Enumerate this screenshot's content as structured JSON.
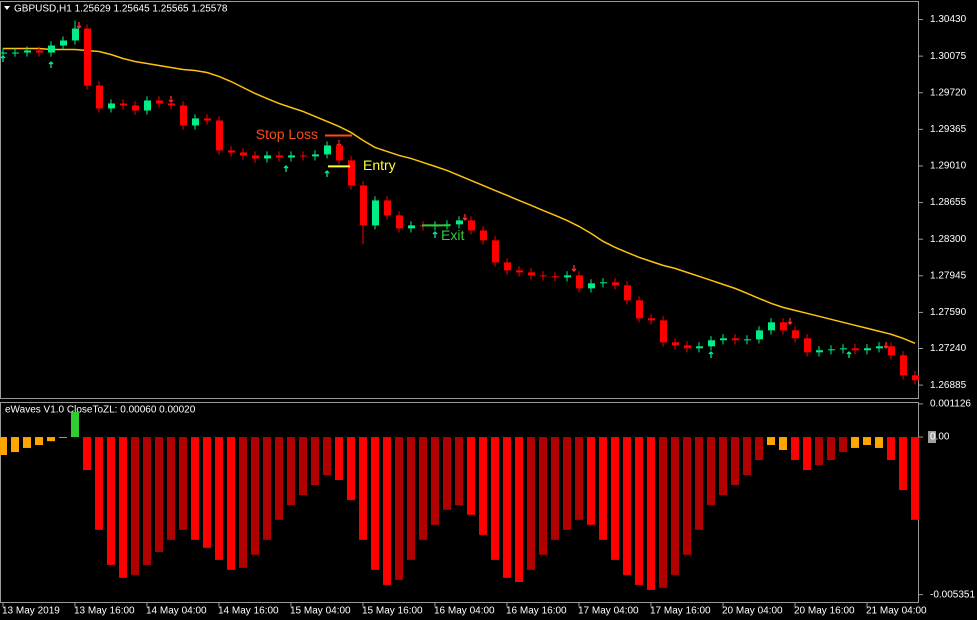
{
  "chart_data": [
    {
      "type": "candlestick",
      "title": "GBPUSD,H1  1.25629 1.25645 1.25565 1.25578",
      "categories": [
        "13 May 2019",
        null,
        null,
        null,
        null,
        null,
        "13 May 16:00",
        null,
        null,
        null,
        null,
        null,
        "14 May 04:00",
        null,
        null,
        null,
        null,
        null,
        "14 May 16:00",
        null,
        null,
        null,
        null,
        null,
        "15 May 04:00",
        null,
        null,
        null,
        null,
        null,
        "15 May 16:00",
        null,
        null,
        null,
        null,
        null,
        "16 May 04:00",
        null,
        null,
        null,
        null,
        null,
        "16 May 16:00",
        null,
        null,
        null,
        null,
        null,
        "17 May 04:00",
        null,
        null,
        null,
        null,
        null,
        "17 May 16:00",
        null,
        null,
        null,
        null,
        null,
        "20 May 04:00",
        null,
        null,
        null,
        null,
        null,
        "20 May 16:00",
        null,
        null,
        null,
        null,
        null,
        "21 May 04:00",
        null,
        null,
        null,
        null
      ],
      "open": [
        1.301,
        1.3011,
        1.3011,
        1.3013,
        1.3011,
        1.30178,
        1.30227,
        1.30343,
        1.2979,
        1.29568,
        1.29616,
        1.29597,
        1.29548,
        1.29645,
        1.29616,
        1.29597,
        1.29403,
        1.29471,
        1.29451,
        1.29161,
        1.29141,
        1.29112,
        1.29083,
        1.29112,
        1.29093,
        1.29112,
        1.29103,
        1.29122,
        1.29209,
        1.29064,
        1.28821,
        1.28434,
        1.28676,
        1.28531,
        1.28405,
        1.28434,
        1.28424,
        1.28434,
        1.28444,
        1.28482,
        1.28385,
        1.28289,
        1.28075,
        1.27998,
        1.27978,
        1.27949,
        1.2794,
        1.2793,
        1.27949,
        1.27823,
        1.27872,
        1.27882,
        1.27853,
        1.27707,
        1.27533,
        1.27513,
        1.273,
        1.27271,
        1.27242,
        1.27261,
        1.2732,
        1.27339,
        1.2732,
        1.27329,
        1.27416,
        1.27494,
        1.27416,
        1.27339,
        1.27203,
        1.27223,
        1.27232,
        1.27242,
        1.27223,
        1.27242,
        1.27261,
        1.27174,
        1.2698
      ],
      "high": [
        1.3015,
        1.3015,
        1.3017,
        1.3017,
        1.30218,
        1.30267,
        1.3042,
        1.30383,
        1.2983,
        1.29656,
        1.29656,
        1.29637,
        1.29685,
        1.29685,
        1.29656,
        1.29637,
        1.29511,
        1.29511,
        1.29491,
        1.29201,
        1.29181,
        1.29152,
        1.29152,
        1.29152,
        1.29152,
        1.29152,
        1.29162,
        1.29249,
        1.29249,
        1.29104,
        1.28861,
        1.28716,
        1.28716,
        1.28571,
        1.28474,
        1.28474,
        1.28474,
        1.28484,
        1.28522,
        1.28522,
        1.28425,
        1.28329,
        1.28115,
        1.28038,
        1.28018,
        1.27989,
        1.2798,
        1.27989,
        1.27989,
        1.27912,
        1.27922,
        1.27922,
        1.27893,
        1.27747,
        1.27573,
        1.27553,
        1.2734,
        1.27311,
        1.27301,
        1.2736,
        1.27379,
        1.27379,
        1.27369,
        1.27456,
        1.27534,
        1.27534,
        1.27456,
        1.27379,
        1.27263,
        1.27272,
        1.27282,
        1.27282,
        1.27282,
        1.27301,
        1.27301,
        1.27214,
        1.2702
      ],
      "low": [
        1.3006,
        1.3007,
        1.3007,
        1.3007,
        1.3007,
        1.30138,
        1.30187,
        1.2975,
        1.29528,
        1.29528,
        1.29557,
        1.29508,
        1.29508,
        1.29576,
        1.29557,
        1.29363,
        1.29363,
        1.29411,
        1.29121,
        1.29101,
        1.29072,
        1.29043,
        1.29043,
        1.29053,
        1.29053,
        1.29063,
        1.29063,
        1.29082,
        1.29024,
        1.28781,
        1.2825,
        1.28394,
        1.28491,
        1.28365,
        1.28365,
        1.28384,
        1.28384,
        1.28394,
        1.28404,
        1.28345,
        1.28249,
        1.28035,
        1.27958,
        1.27938,
        1.27909,
        1.279,
        1.2789,
        1.2789,
        1.27783,
        1.27783,
        1.27832,
        1.27813,
        1.27667,
        1.27493,
        1.27473,
        1.2726,
        1.27231,
        1.27202,
        1.27202,
        1.27221,
        1.2728,
        1.2728,
        1.2728,
        1.27289,
        1.27376,
        1.27376,
        1.27299,
        1.27163,
        1.27163,
        1.27183,
        1.27192,
        1.27183,
        1.27183,
        1.27202,
        1.27134,
        1.2694,
        1.26892
      ],
      "close": [
        1.3011,
        1.3011,
        1.3013,
        1.3011,
        1.30178,
        1.30227,
        1.30343,
        1.2979,
        1.29568,
        1.29616,
        1.29597,
        1.29548,
        1.29645,
        1.29616,
        1.29597,
        1.29403,
        1.29471,
        1.29451,
        1.29161,
        1.29141,
        1.29112,
        1.29083,
        1.29112,
        1.29093,
        1.29112,
        1.29103,
        1.29122,
        1.29209,
        1.29064,
        1.28821,
        1.28434,
        1.28676,
        1.28531,
        1.28405,
        1.28434,
        1.28424,
        1.28434,
        1.28444,
        1.28482,
        1.28385,
        1.28289,
        1.28075,
        1.27998,
        1.27978,
        1.27949,
        1.2794,
        1.2793,
        1.27949,
        1.27823,
        1.27872,
        1.27882,
        1.27853,
        1.27707,
        1.27533,
        1.27513,
        1.273,
        1.27271,
        1.27242,
        1.27261,
        1.2732,
        1.27339,
        1.2732,
        1.27329,
        1.27416,
        1.27494,
        1.27416,
        1.27339,
        1.27203,
        1.27223,
        1.27232,
        1.27242,
        1.27223,
        1.27242,
        1.27261,
        1.27174,
        1.2698,
        1.26932
      ],
      "up_color": "#00ee88",
      "down_color": "#ff0000",
      "moving_average": {
        "color": "#ffc20e",
        "values": [
          1.30149,
          1.30149,
          1.30149,
          1.30149,
          1.30139,
          1.30139,
          1.30139,
          1.3013,
          1.3012,
          1.30091,
          1.30052,
          1.30023,
          1.30004,
          1.29984,
          1.29965,
          1.29945,
          1.29936,
          1.29916,
          1.29878,
          1.29829,
          1.29771,
          1.29713,
          1.29664,
          1.29616,
          1.29577,
          1.29539,
          1.2949,
          1.29442,
          1.29393,
          1.29335,
          1.29258,
          1.2919,
          1.29151,
          1.29112,
          1.29083,
          1.29044,
          1.29006,
          1.28967,
          1.28918,
          1.2887,
          1.28821,
          1.28773,
          1.28725,
          1.28676,
          1.28628,
          1.28579,
          1.28531,
          1.28482,
          1.28424,
          1.28356,
          1.28279,
          1.28221,
          1.28172,
          1.28124,
          1.28085,
          1.28046,
          1.28017,
          1.27978,
          1.2794,
          1.27901,
          1.27862,
          1.27823,
          1.27775,
          1.27726,
          1.27678,
          1.27639,
          1.2761,
          1.27581,
          1.27552,
          1.27523,
          1.27494,
          1.27465,
          1.27436,
          1.27407,
          1.27378,
          1.27339,
          1.2729
        ]
      },
      "annotations": [
        {
          "text": "Stop Loss",
          "value": 1.29306,
          "color": "#ff4a1a"
        },
        {
          "text": "Entry",
          "value": 1.29006,
          "color": "#ffff33"
        },
        {
          "text": "Exit",
          "value": 1.28434,
          "color": "#33cc33"
        }
      ],
      "ylim": [
        1.2676,
        1.306
      ],
      "yticks": [
        {
          "value": 1.3043,
          "label": "1.30430"
        },
        1.30075,
        {
          "value": 1.2972,
          "label": "1.29720"
        },
        1.29365,
        {
          "value": 1.2901,
          "label": "1.29010"
        },
        1.28655,
        {
          "value": 1.283,
          "label": "1.28300"
        },
        1.27945,
        {
          "value": 1.2759,
          "label": "1.27590"
        },
        {
          "value": 1.2724,
          "label": "1.27240"
        },
        1.26885
      ]
    },
    {
      "type": "bar",
      "title": "eWaves V1.0 CloseToZL: 0.00060 0.00020",
      "values": [
        -0.00061,
        -0.00051,
        -0.00037,
        -0.00027,
        -0.00014,
        -3e-05,
        0.00085,
        -0.00112,
        -0.00315,
        -0.00434,
        -0.00478,
        -0.00468,
        -0.00434,
        -0.0039,
        -0.00349,
        -0.00315,
        -0.00349,
        -0.00376,
        -0.00417,
        -0.00451,
        -0.00444,
        -0.004,
        -0.00349,
        -0.00281,
        -0.00231,
        -0.00197,
        -0.00163,
        -0.00129,
        -0.00146,
        -0.00214,
        -0.00349,
        -0.00451,
        -0.00502,
        -0.00485,
        -0.00417,
        -0.00349,
        -0.00298,
        -0.00247,
        -0.00231,
        -0.00264,
        -0.00332,
        -0.00417,
        -0.00478,
        -0.00492,
        -0.00451,
        -0.004,
        -0.00349,
        -0.00315,
        -0.00281,
        -0.00298,
        -0.00349,
        -0.00417,
        -0.00468,
        -0.00502,
        -0.00519,
        -0.00512,
        -0.00468,
        -0.004,
        -0.00315,
        -0.00231,
        -0.00197,
        -0.00163,
        -0.00129,
        -0.00078,
        -0.00027,
        -0.00044,
        -0.00078,
        -0.00112,
        -0.00095,
        -0.00078,
        -0.00051,
        -0.00037,
        -0.00027,
        -0.00037,
        -0.00078,
        -0.0018,
        -0.00281
      ],
      "colors": [
        "#ffa500",
        "#ffa500",
        "#ffa500",
        "#ffa500",
        "#ffa500",
        "#ffa500",
        "#32cd32",
        "#ff0000",
        "#ff0000",
        "#ff0000",
        "#ff0000",
        "#b00000",
        "#b00000",
        "#b00000",
        "#b00000",
        "#b00000",
        "#ff0000",
        "#ff0000",
        "#ff0000",
        "#ff0000",
        "#b00000",
        "#b00000",
        "#b00000",
        "#b00000",
        "#b00000",
        "#b00000",
        "#b00000",
        "#b00000",
        "#ff0000",
        "#ff0000",
        "#ff0000",
        "#ff0000",
        "#ff0000",
        "#b00000",
        "#b00000",
        "#b00000",
        "#b00000",
        "#b00000",
        "#b00000",
        "#ff0000",
        "#ff0000",
        "#ff0000",
        "#ff0000",
        "#ff0000",
        "#b00000",
        "#b00000",
        "#b00000",
        "#b00000",
        "#b00000",
        "#ff0000",
        "#ff0000",
        "#ff0000",
        "#ff0000",
        "#ff0000",
        "#ff0000",
        "#b00000",
        "#b00000",
        "#b00000",
        "#b00000",
        "#b00000",
        "#b00000",
        "#b00000",
        "#b00000",
        "#b00000",
        "#ffa500",
        "#ffa500",
        "#ff0000",
        "#ff0000",
        "#b00000",
        "#b00000",
        "#b00000",
        "#ffa500",
        "#ffa500",
        "#ffa500",
        "#ff0000",
        "#ff0000",
        "#ff0000"
      ],
      "ylim": [
        -0.0056,
        0.00119
      ],
      "yticks": [
        0.001126,
        {
          "value": 0,
          "label": "0.00"
        },
        -0.005351
      ]
    }
  ]
}
